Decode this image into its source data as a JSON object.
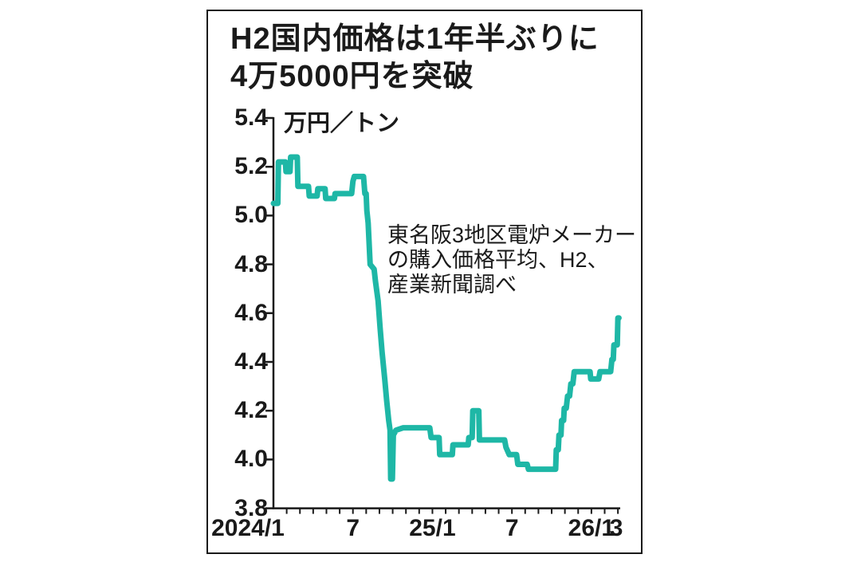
{
  "title": {
    "line1": "H2国内価格は1年半ぶりに",
    "line2": "4万5000円を突破"
  },
  "unit_label": "万円／トン",
  "annotation": {
    "line1": "東名阪3地区電炉メーカー",
    "line2": "の購入価格平均、H2、",
    "line3": "産業新聞調べ"
  },
  "colors": {
    "line": "#1eb7a6",
    "axis": "#1a1a1a",
    "text": "#1a1a1a"
  },
  "chart_data": {
    "type": "line",
    "title": "H2国内価格は1年半ぶりに4万5000円を突破",
    "ylabel": "万円／トン",
    "x_unit": "months from 2024/1 (0 = Jan 2024, 26 = Mar 2026)",
    "xlim": [
      0,
      26.2
    ],
    "ylim": [
      3.8,
      5.4
    ],
    "grid": false,
    "legend": "none",
    "y_ticks": [
      5.4,
      5.2,
      5.0,
      4.8,
      4.6,
      4.4,
      4.2,
      4.0,
      3.8
    ],
    "x_ticks": [
      {
        "m": 0,
        "label": "2024/1",
        "dx": -32
      },
      {
        "m": 6,
        "label": "7",
        "dx": 0
      },
      {
        "m": 12,
        "label": "25/1",
        "dx": 0
      },
      {
        "m": 18,
        "label": "7",
        "dx": 0
      },
      {
        "m": 24,
        "label": "26/1",
        "dx": 0
      },
      {
        "m": 26,
        "label": "3",
        "dx": -2
      }
    ],
    "minor_x_ticks_every_month": true,
    "series": [
      {
        "name": "H2国内価格（東名阪3地区電炉メーカー購入価格平均、万円／トン）",
        "points": [
          [
            0,
            5.05
          ],
          [
            0.33,
            5.05
          ],
          [
            0.38,
            5.22
          ],
          [
            0.9,
            5.22
          ],
          [
            0.95,
            5.18
          ],
          [
            1.25,
            5.18
          ],
          [
            1.3,
            5.24
          ],
          [
            1.8,
            5.24
          ],
          [
            1.85,
            5.12
          ],
          [
            2.65,
            5.12
          ],
          [
            2.7,
            5.08
          ],
          [
            3.3,
            5.08
          ],
          [
            3.35,
            5.11
          ],
          [
            3.9,
            5.11
          ],
          [
            3.95,
            5.07
          ],
          [
            4.6,
            5.07
          ],
          [
            4.65,
            5.09
          ],
          [
            5.9,
            5.09
          ],
          [
            6.0,
            5.14
          ],
          [
            6.1,
            5.16
          ],
          [
            6.8,
            5.16
          ],
          [
            6.9,
            5.09
          ],
          [
            7.0,
            5.09
          ],
          [
            7.05,
            5.02
          ],
          [
            7.15,
            4.97
          ],
          [
            7.3,
            4.8
          ],
          [
            7.6,
            4.78
          ],
          [
            7.7,
            4.73
          ],
          [
            7.9,
            4.65
          ],
          [
            8.05,
            4.54
          ],
          [
            8.2,
            4.44
          ],
          [
            8.4,
            4.33
          ],
          [
            8.55,
            4.24
          ],
          [
            8.7,
            4.16
          ],
          [
            8.8,
            4.12
          ],
          [
            8.85,
            3.92
          ],
          [
            8.98,
            3.92
          ],
          [
            9.05,
            4.1
          ],
          [
            9.25,
            4.12
          ],
          [
            9.8,
            4.13
          ],
          [
            11.8,
            4.13
          ],
          [
            11.9,
            4.09
          ],
          [
            12.5,
            4.09
          ],
          [
            12.55,
            4.02
          ],
          [
            13.5,
            4.02
          ],
          [
            13.55,
            4.06
          ],
          [
            14.7,
            4.06
          ],
          [
            14.75,
            4.09
          ],
          [
            15,
            4.09
          ],
          [
            15.05,
            4.2
          ],
          [
            15.5,
            4.2
          ],
          [
            15.55,
            4.08
          ],
          [
            17.45,
            4.08
          ],
          [
            17.55,
            4.05
          ],
          [
            17.8,
            4.02
          ],
          [
            18.35,
            4.02
          ],
          [
            18.45,
            3.98
          ],
          [
            19.15,
            3.98
          ],
          [
            19.25,
            3.96
          ],
          [
            21.3,
            3.96
          ],
          [
            21.35,
            4.04
          ],
          [
            21.5,
            4.04
          ],
          [
            21.55,
            4.1
          ],
          [
            21.7,
            4.1
          ],
          [
            21.75,
            4.16
          ],
          [
            21.9,
            4.16
          ],
          [
            21.95,
            4.21
          ],
          [
            22.1,
            4.21
          ],
          [
            22.2,
            4.26
          ],
          [
            22.35,
            4.26
          ],
          [
            22.45,
            4.31
          ],
          [
            22.6,
            4.31
          ],
          [
            22.7,
            4.36
          ],
          [
            23.9,
            4.36
          ],
          [
            23.95,
            4.33
          ],
          [
            24.55,
            4.33
          ],
          [
            24.65,
            4.36
          ],
          [
            25.45,
            4.36
          ],
          [
            25.55,
            4.41
          ],
          [
            25.65,
            4.41
          ],
          [
            25.7,
            4.47
          ],
          [
            25.95,
            4.47
          ],
          [
            26,
            4.58
          ],
          [
            26.08,
            4.58
          ]
        ]
      }
    ]
  }
}
